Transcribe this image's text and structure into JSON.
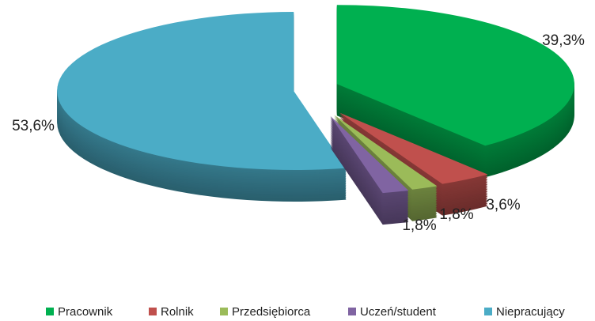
{
  "chart_data": {
    "type": "pie",
    "categories": [
      "Pracownik",
      "Rolnik",
      "Przedsiębiorca",
      "Uczeń/student",
      "Niepracujący"
    ],
    "values": [
      39.3,
      3.6,
      1.8,
      1.8,
      53.6
    ],
    "value_labels": [
      "39,3%",
      "3,6%",
      "1,8%",
      "1,8%",
      "53,6%"
    ],
    "colors": [
      "#00b050",
      "#c0504d",
      "#9bbb59",
      "#8064a2",
      "#4bacc6"
    ],
    "legend": "bottom"
  }
}
